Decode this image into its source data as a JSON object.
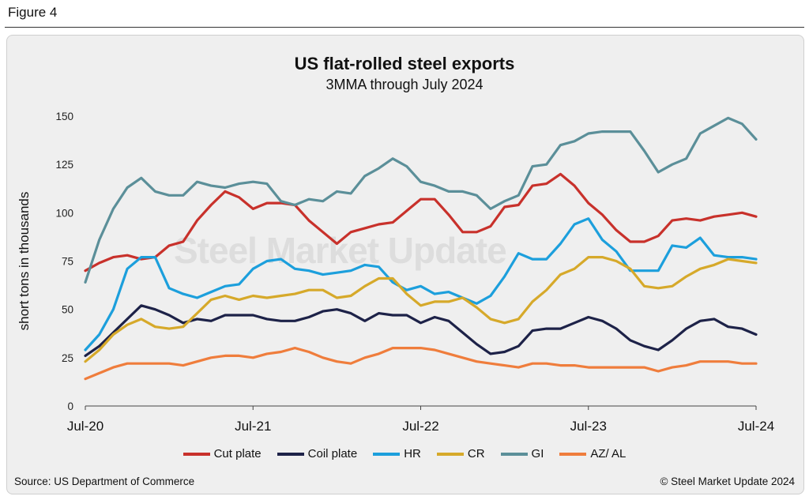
{
  "figure_label": "Figure 4",
  "source": "Source: US Department of Commerce",
  "copyright": "© Steel Market Update 2024",
  "watermark": "Steel Market Update",
  "colors": {
    "Cut plate": "#c8312b",
    "Coil plate": "#1d2248",
    "HR": "#1c9fdc",
    "CR": "#d6a92a",
    "GI": "#5b8f99",
    "AZ/ AL": "#ef7d3c"
  },
  "chart_data": {
    "type": "line",
    "title": "US flat-rolled steel exports",
    "subtitle": "3MMA through July 2024",
    "xlabel": "",
    "ylabel": "short tons in thousands",
    "ylim": [
      0,
      150
    ],
    "yticks": [
      0,
      25,
      50,
      75,
      100,
      125,
      150
    ],
    "x_tick_labels": [
      {
        "index": 0,
        "label": "Jul-20"
      },
      {
        "index": 12,
        "label": "Jul-21"
      },
      {
        "index": 24,
        "label": "Jul-22"
      },
      {
        "index": 36,
        "label": "Jul-23"
      },
      {
        "index": 48,
        "label": "Jul-24"
      }
    ],
    "x_count": 49,
    "series": [
      {
        "name": "Cut plate",
        "values": [
          70,
          74,
          77,
          78,
          76,
          77,
          83,
          85,
          96,
          104,
          111,
          108,
          102,
          105,
          105,
          104,
          96,
          90,
          84,
          90,
          92,
          94,
          95,
          101,
          107,
          107,
          99,
          90,
          90,
          93,
          103,
          104,
          114,
          115,
          120,
          114,
          105,
          99,
          91,
          85,
          85,
          88,
          96,
          97,
          96,
          98,
          99,
          100,
          98
        ]
      },
      {
        "name": "Coil plate",
        "values": [
          26,
          31,
          38,
          45,
          52,
          50,
          47,
          43,
          45,
          44,
          47,
          47,
          47,
          45,
          44,
          44,
          46,
          49,
          50,
          48,
          44,
          48,
          47,
          47,
          43,
          46,
          44,
          38,
          32,
          27,
          28,
          31,
          39,
          40,
          40,
          43,
          46,
          44,
          40,
          34,
          31,
          29,
          34,
          40,
          44,
          45,
          41,
          40,
          37
        ]
      },
      {
        "name": "HR",
        "values": [
          29,
          37,
          50,
          71,
          77,
          77,
          61,
          58,
          56,
          59,
          62,
          63,
          71,
          75,
          76,
          71,
          70,
          68,
          69,
          70,
          73,
          72,
          64,
          60,
          62,
          58,
          59,
          56,
          53,
          57,
          67,
          79,
          76,
          76,
          84,
          94,
          97,
          86,
          80,
          70,
          70,
          70,
          83,
          82,
          87,
          78,
          77,
          77,
          76
        ]
      },
      {
        "name": "CR",
        "values": [
          23,
          29,
          37,
          42,
          45,
          41,
          40,
          41,
          48,
          55,
          57,
          55,
          57,
          56,
          57,
          58,
          60,
          60,
          56,
          57,
          62,
          66,
          66,
          58,
          52,
          54,
          54,
          56,
          51,
          45,
          43,
          45,
          54,
          60,
          68,
          71,
          77,
          77,
          75,
          71,
          62,
          61,
          62,
          67,
          71,
          73,
          76,
          75,
          74
        ]
      },
      {
        "name": "GI",
        "values": [
          64,
          86,
          102,
          113,
          118,
          111,
          109,
          109,
          116,
          114,
          113,
          115,
          116,
          115,
          106,
          104,
          107,
          106,
          111,
          110,
          119,
          123,
          128,
          124,
          116,
          114,
          111,
          111,
          109,
          102,
          106,
          109,
          124,
          125,
          135,
          137,
          141,
          142,
          142,
          142,
          132,
          121,
          125,
          128,
          141,
          145,
          149,
          146,
          138
        ]
      },
      {
        "name": "AZ/ AL",
        "values": [
          14,
          17,
          20,
          22,
          22,
          22,
          22,
          21,
          23,
          25,
          26,
          26,
          25,
          27,
          28,
          30,
          28,
          25,
          23,
          22,
          25,
          27,
          30,
          30,
          30,
          29,
          27,
          25,
          23,
          22,
          21,
          20,
          22,
          22,
          21,
          21,
          20,
          20,
          20,
          20,
          20,
          18,
          20,
          21,
          23,
          23,
          23,
          22,
          22
        ]
      }
    ]
  }
}
